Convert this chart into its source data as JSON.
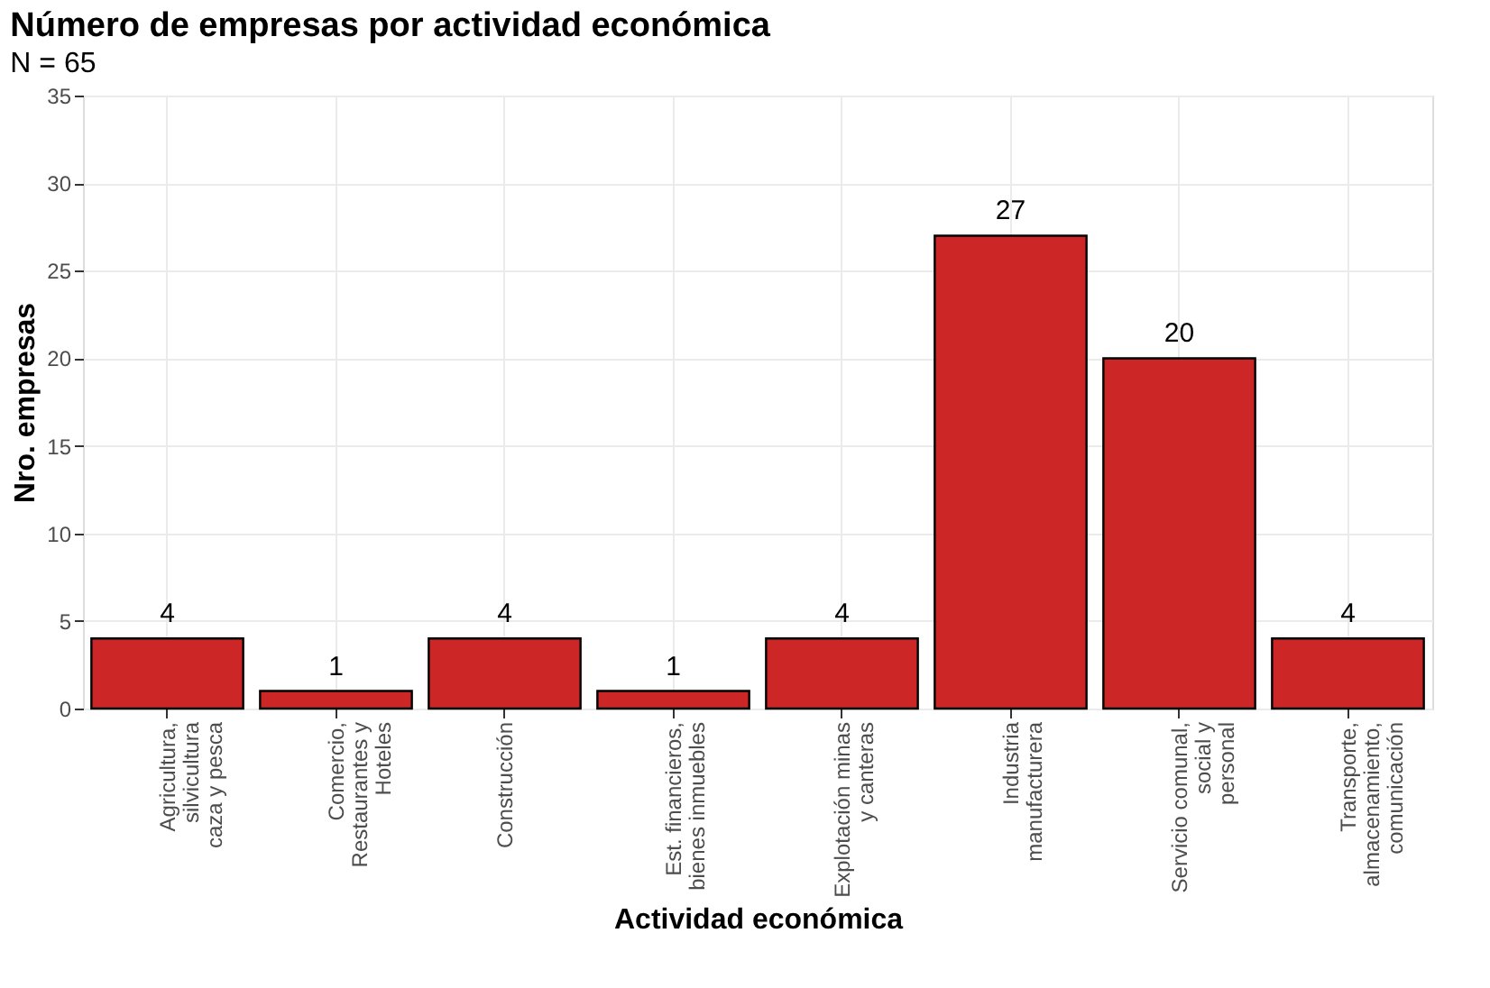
{
  "chart_data": {
    "type": "bar",
    "title": "Número de empresas por actividad económica",
    "subtitle": "N = 65",
    "xlabel": "Actividad económica",
    "ylabel": "Nro. empresas",
    "categories": [
      "Agricultura,\nsilvicultura\ncaza y pesca",
      "Comercio,\nRestaurantes y\nHoteles",
      "Construcción",
      "Est. financieros,\nbienes inmuebles",
      "Explotación minas\ny canteras",
      "Industria\nmanufacturera",
      "Servicio comunal,\nsocial y\npersonal",
      "Transporte,\nalmacenamiento,\ncomunicación"
    ],
    "values": [
      4,
      1,
      4,
      1,
      4,
      27,
      20,
      4
    ],
    "color": "#cd2626",
    "ylim": [
      0,
      35
    ],
    "yticks": [
      0,
      5,
      10,
      15,
      20,
      25,
      30,
      35
    ],
    "grid": true,
    "data_labels": true
  }
}
